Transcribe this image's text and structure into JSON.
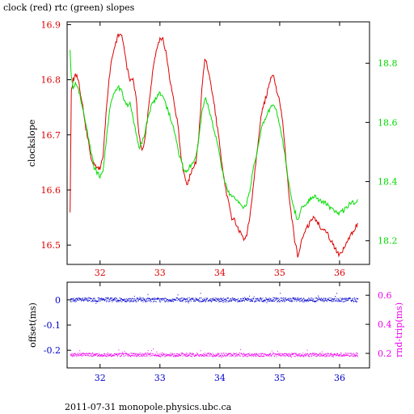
{
  "title": "clock (red) rtc (green) slopes",
  "footer": "2011-07-31 monopole.physics.ubc.ca",
  "colors": {
    "red": "#dd0000",
    "green": "#00dd00",
    "blue": "#0000cc",
    "magenta": "#ee00ee",
    "axis": "#000000"
  },
  "chart_data": [
    {
      "type": "line",
      "title": "clock (red) rtc (green) slopes",
      "ylabel": "clockslope",
      "xlim": [
        31.45,
        36.5
      ],
      "xticks": [
        32,
        33,
        34,
        35,
        36
      ],
      "grid": false,
      "yaxes": {
        "left": {
          "lim": [
            16.465,
            16.905
          ],
          "ticks": [
            16.5,
            16.6,
            16.7,
            16.8,
            16.9
          ],
          "tick_labels": [
            "16.5",
            "16.6",
            "16.7",
            "16.8",
            "16.9"
          ],
          "color": "#dd0000"
        },
        "right": {
          "lim": [
            18.12,
            18.94
          ],
          "ticks": [
            18.2,
            18.4,
            18.6,
            18.8
          ],
          "tick_labels": [
            "18.2",
            "18.4",
            "18.6",
            "18.8"
          ],
          "color": "#00dd00"
        }
      },
      "series": [
        {
          "name": "clock",
          "axis": "left",
          "color": "#dd0000",
          "x": [
            31.5,
            31.52,
            31.55,
            31.6,
            31.65,
            31.7,
            31.75,
            31.8,
            31.85,
            31.9,
            31.95,
            32.0,
            32.05,
            32.1,
            32.15,
            32.2,
            32.25,
            32.3,
            32.35,
            32.4,
            32.45,
            32.5,
            32.55,
            32.6,
            32.65,
            32.7,
            32.75,
            32.8,
            32.85,
            32.9,
            32.95,
            33.0,
            33.05,
            33.1,
            33.15,
            33.2,
            33.25,
            33.3,
            33.35,
            33.4,
            33.45,
            33.5,
            33.55,
            33.6,
            33.65,
            33.7,
            33.75,
            33.8,
            33.85,
            33.9,
            33.95,
            34.0,
            34.05,
            34.1,
            34.15,
            34.2,
            34.25,
            34.3,
            34.35,
            34.4,
            34.45,
            34.5,
            34.55,
            34.6,
            34.65,
            34.7,
            34.75,
            34.8,
            34.85,
            34.9,
            34.95,
            35.0,
            35.05,
            35.1,
            35.15,
            35.2,
            35.25,
            35.3,
            35.35,
            35.4,
            35.45,
            35.5,
            35.55,
            35.6,
            35.65,
            35.7,
            35.75,
            35.8,
            35.85,
            35.9,
            35.95,
            36.0,
            36.05,
            36.1,
            36.15,
            36.2,
            36.25,
            36.3
          ],
          "y": [
            16.56,
            16.78,
            16.8,
            16.81,
            16.79,
            16.76,
            16.72,
            16.69,
            16.66,
            16.645,
            16.64,
            16.64,
            16.66,
            16.74,
            16.8,
            16.84,
            16.86,
            16.88,
            16.885,
            16.86,
            16.82,
            16.8,
            16.8,
            16.77,
            16.7,
            16.67,
            16.69,
            16.74,
            16.79,
            16.83,
            16.86,
            16.875,
            16.875,
            16.85,
            16.81,
            16.78,
            16.75,
            16.72,
            16.66,
            16.63,
            16.61,
            16.625,
            16.64,
            16.65,
            16.7,
            16.78,
            16.84,
            16.82,
            16.79,
            16.76,
            16.72,
            16.68,
            16.63,
            16.6,
            16.575,
            16.55,
            16.545,
            16.53,
            16.52,
            16.51,
            16.52,
            16.55,
            16.6,
            16.65,
            16.7,
            16.74,
            16.76,
            16.78,
            16.8,
            16.81,
            16.78,
            16.76,
            16.72,
            16.66,
            16.6,
            16.55,
            16.51,
            16.48,
            16.5,
            16.52,
            16.53,
            16.54,
            16.55,
            16.545,
            16.54,
            16.53,
            16.53,
            16.52,
            16.51,
            16.5,
            16.49,
            16.48,
            16.49,
            16.5,
            16.51,
            16.52,
            16.53,
            16.54
          ]
        },
        {
          "name": "rtc",
          "axis": "right",
          "color": "#00dd00",
          "x": [
            31.5,
            31.52,
            31.55,
            31.6,
            31.65,
            31.7,
            31.75,
            31.8,
            31.85,
            31.9,
            31.95,
            32.0,
            32.05,
            32.1,
            32.15,
            32.2,
            32.25,
            32.3,
            32.35,
            32.4,
            32.45,
            32.5,
            32.55,
            32.6,
            32.65,
            32.7,
            32.75,
            32.8,
            32.85,
            32.9,
            32.95,
            33.0,
            33.05,
            33.1,
            33.15,
            33.2,
            33.25,
            33.3,
            33.35,
            33.4,
            33.45,
            33.5,
            33.55,
            33.6,
            33.65,
            33.7,
            33.75,
            33.8,
            33.85,
            33.9,
            33.95,
            34.0,
            34.05,
            34.1,
            34.15,
            34.2,
            34.25,
            34.3,
            34.35,
            34.4,
            34.45,
            34.5,
            34.55,
            34.6,
            34.65,
            34.7,
            34.75,
            34.8,
            34.85,
            34.9,
            34.95,
            35.0,
            35.05,
            35.1,
            35.15,
            35.2,
            35.25,
            35.3,
            35.35,
            35.4,
            35.45,
            35.5,
            35.55,
            35.6,
            35.65,
            35.7,
            35.75,
            35.8,
            35.85,
            35.9,
            35.95,
            36.0,
            36.05,
            36.1,
            36.15,
            36.2,
            36.25,
            36.3
          ],
          "y": [
            18.84,
            18.75,
            18.72,
            18.73,
            18.7,
            18.66,
            18.6,
            18.55,
            18.5,
            18.45,
            18.43,
            18.42,
            18.44,
            18.53,
            18.63,
            18.68,
            18.71,
            18.72,
            18.71,
            18.68,
            18.66,
            18.66,
            18.62,
            18.56,
            18.51,
            18.53,
            18.57,
            18.62,
            18.65,
            18.67,
            18.69,
            18.7,
            18.69,
            18.66,
            18.63,
            18.6,
            18.56,
            18.51,
            18.47,
            18.44,
            18.43,
            18.45,
            18.46,
            18.48,
            18.55,
            18.63,
            18.68,
            18.66,
            18.62,
            18.58,
            18.54,
            18.48,
            18.43,
            18.39,
            18.36,
            18.35,
            18.34,
            18.33,
            18.32,
            18.31,
            18.33,
            18.37,
            18.43,
            18.48,
            18.53,
            18.58,
            18.61,
            18.63,
            18.65,
            18.66,
            18.63,
            18.59,
            18.54,
            18.47,
            18.4,
            18.34,
            18.3,
            18.27,
            18.3,
            18.32,
            18.33,
            18.34,
            18.35,
            18.35,
            18.34,
            18.33,
            18.33,
            18.32,
            18.31,
            18.3,
            18.3,
            18.29,
            18.3,
            18.31,
            18.32,
            18.33,
            18.33,
            18.34
          ]
        }
      ]
    },
    {
      "type": "scatter",
      "xlim": [
        31.45,
        36.5
      ],
      "xticks": [
        32,
        33,
        34,
        35,
        36
      ],
      "tick_labels": [
        "32",
        "33",
        "34",
        "35",
        "36"
      ],
      "grid": false,
      "yaxes": {
        "left": {
          "label": "offset(ms)",
          "lim": [
            -0.27,
            0.07
          ],
          "ticks": [
            0,
            -0.1,
            -0.2
          ],
          "tick_labels": [
            "0",
            "-0.1",
            "-0.2"
          ],
          "color": "#0000cc"
        },
        "right": {
          "label": "rnd-trip(ms)",
          "lim": [
            0.1,
            0.69
          ],
          "ticks": [
            0.2,
            0.4,
            0.6
          ],
          "tick_labels": [
            "0.2",
            "0.4",
            "0.6"
          ],
          "color": "#ee00ee"
        }
      },
      "series": [
        {
          "name": "offset",
          "axis": "left",
          "color": "#0000cc",
          "level": 0.0,
          "spread": 0.008
        },
        {
          "name": "rnd-trip",
          "axis": "right",
          "color": "#ee00ee",
          "level": 0.19,
          "spread": 0.012
        }
      ]
    }
  ]
}
